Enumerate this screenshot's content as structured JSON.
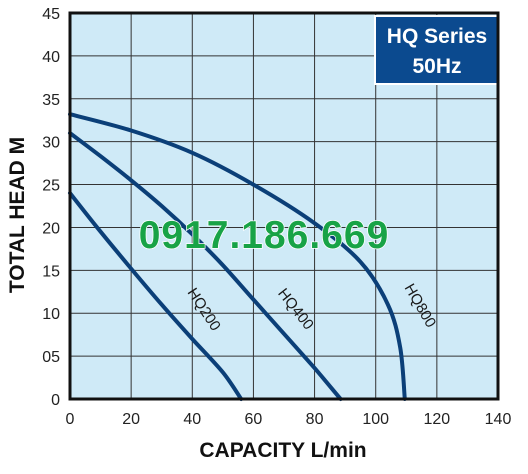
{
  "chart_data": {
    "type": "line",
    "title": "HQ Series",
    "subtitle": "50Hz",
    "xlabel": "CAPACITY L/min",
    "ylabel": "TOTAL HEAD M",
    "xlim": [
      0,
      140
    ],
    "ylim": [
      0,
      45
    ],
    "x_ticks": [
      "0",
      "20",
      "40",
      "60",
      "80",
      "100",
      "120",
      "140"
    ],
    "y_ticks": [
      "0",
      "05",
      "10",
      "15",
      "20",
      "25",
      "30",
      "35",
      "40",
      "45"
    ],
    "grid": true,
    "series": [
      {
        "name": "HQ200",
        "points": [
          [
            0,
            24
          ],
          [
            10,
            19.5
          ],
          [
            20,
            15.2
          ],
          [
            30,
            11
          ],
          [
            40,
            7
          ],
          [
            50,
            3.1
          ],
          [
            56,
            0
          ]
        ]
      },
      {
        "name": "HQ400",
        "points": [
          [
            0,
            31
          ],
          [
            10,
            28.3
          ],
          [
            20,
            25.5
          ],
          [
            30,
            22.5
          ],
          [
            40,
            19.2
          ],
          [
            50,
            15.6
          ],
          [
            60,
            11.6
          ],
          [
            70,
            7.6
          ],
          [
            80,
            3.6
          ],
          [
            88.5,
            0
          ]
        ]
      },
      {
        "name": "HQ800",
        "points": [
          [
            0,
            33.2
          ],
          [
            20,
            31.3
          ],
          [
            40,
            28.7
          ],
          [
            60,
            25
          ],
          [
            80,
            20.5
          ],
          [
            95,
            16
          ],
          [
            104,
            11
          ],
          [
            108,
            6
          ],
          [
            109.5,
            0
          ]
        ]
      }
    ],
    "watermark": "0917.186.669",
    "colors": {
      "curve": "#0b3f78",
      "plot_background": "#cfeaf7",
      "grid": "#333333",
      "title_box": "#0b4a8f",
      "title_text": "#ffffff",
      "watermark": "#18a346"
    }
  }
}
